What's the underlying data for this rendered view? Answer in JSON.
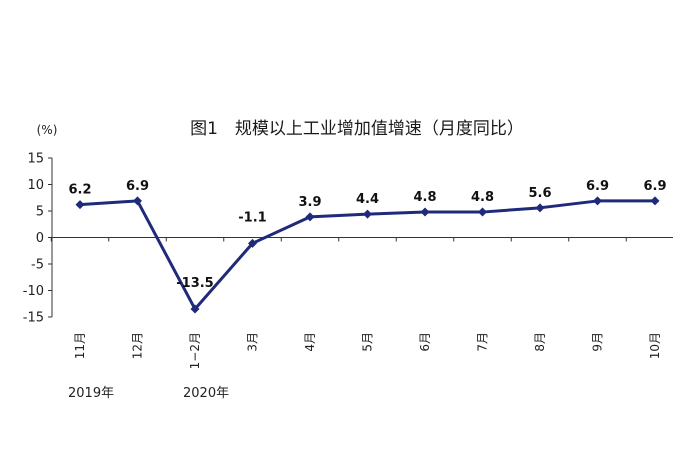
{
  "chart_data": {
    "type": "line",
    "title": "图1　规模以上工业增加值增速（月度同比）",
    "ylabel": "(%)",
    "xlabel": "",
    "categories": [
      "11月",
      "12月",
      "1−2月",
      "3月",
      "4月",
      "5月",
      "6月",
      "7月",
      "8月",
      "9月",
      "10月"
    ],
    "series": [
      {
        "values": [
          6.2,
          6.9,
          -13.5,
          -1.1,
          3.9,
          4.4,
          4.8,
          4.8,
          5.6,
          6.9,
          6.9
        ],
        "labels": [
          "6.2",
          "6.9",
          "-13.5",
          "-1.1",
          "3.9",
          "4.4",
          "4.8",
          "4.8",
          "5.6",
          "6.9",
          "6.9"
        ]
      }
    ],
    "ylim": [
      -15,
      15
    ],
    "yticks": [
      15,
      10,
      5,
      0,
      -5,
      -10,
      -15
    ],
    "grid": false,
    "legend": "none",
    "color": "#1f2a7a",
    "year_labels": [
      {
        "text": "2019年",
        "category_index": 0
      },
      {
        "text": "2020年",
        "category_index": 2
      }
    ]
  }
}
